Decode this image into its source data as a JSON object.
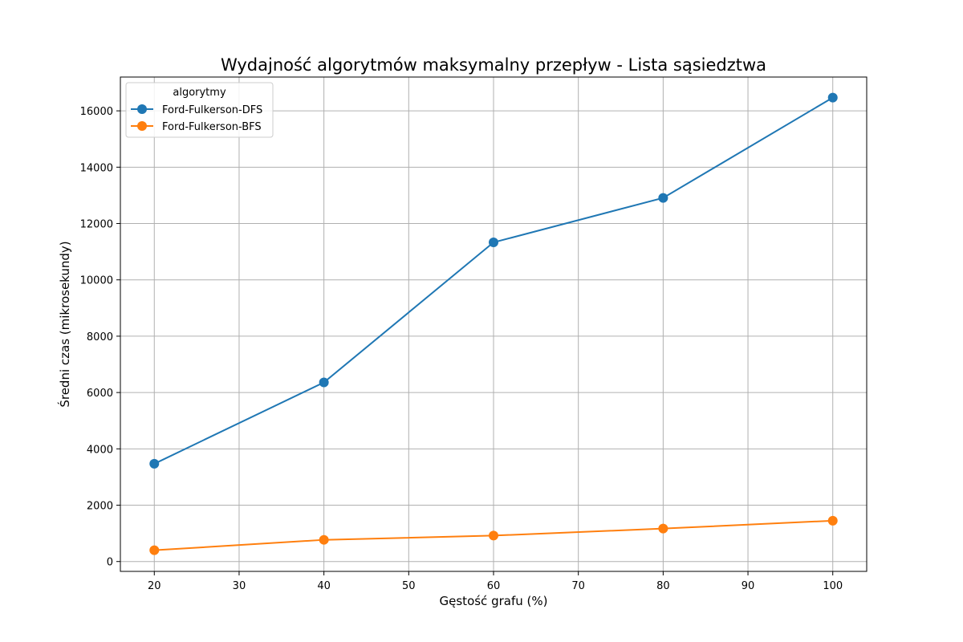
{
  "chart_data": {
    "type": "line",
    "title": "Wydajność algorytmów maksymalny przepływ - Lista sąsiedztwa",
    "xlabel": "Gęstość grafu (%)",
    "ylabel": "Średni czas (mikrosekundy)",
    "x": [
      20,
      40,
      60,
      80,
      100
    ],
    "xlim": [
      16,
      104
    ],
    "ylim": [
      -350,
      17200
    ],
    "xticks": [
      20,
      30,
      40,
      50,
      60,
      70,
      80,
      90,
      100
    ],
    "yticks": [
      0,
      2000,
      4000,
      6000,
      8000,
      10000,
      12000,
      14000,
      16000
    ],
    "grid": true,
    "legend": {
      "title": "algorytmy",
      "placement": "top-left"
    },
    "series": [
      {
        "name": "Ford-Fulkerson-DFS",
        "color": "#1f77b4",
        "values": [
          3470,
          6360,
          11330,
          12910,
          16470
        ]
      },
      {
        "name": "Ford-Fulkerson-BFS",
        "color": "#ff7f0e",
        "values": [
          400,
          770,
          920,
          1170,
          1450
        ]
      }
    ]
  }
}
